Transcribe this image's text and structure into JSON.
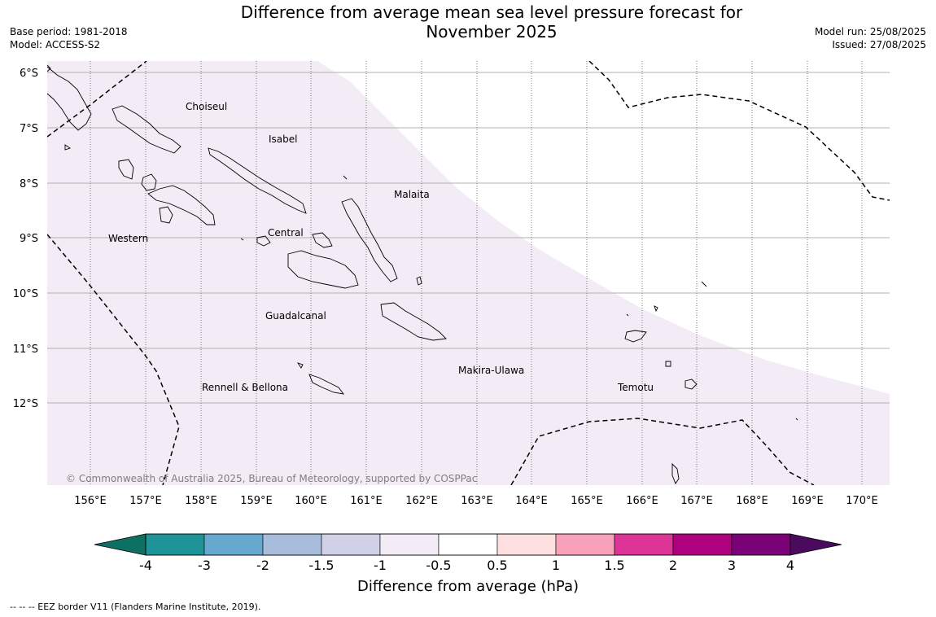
{
  "title_line1": "Difference from average mean sea level pressure forecast for",
  "title_line2": "November 2025",
  "meta_left": {
    "base_period": "Base period: 1981-2018",
    "model": "Model: ACCESS-S2"
  },
  "meta_right": {
    "model_run": "Model run: 25/08/2025",
    "issued": "Issued: 27/08/2025"
  },
  "map": {
    "lon_ticks": [
      "156°E",
      "157°E",
      "158°E",
      "159°E",
      "160°E",
      "161°E",
      "162°E",
      "163°E",
      "164°E",
      "165°E",
      "166°E",
      "167°E",
      "168°E",
      "169°E",
      "170°E"
    ],
    "lat_ticks": [
      "6°S",
      "7°S",
      "8°S",
      "9°S",
      "10°S",
      "11°S",
      "12°S"
    ],
    "copyright": "© Commonwealth of Australia 2025, Bureau of Meteorology, supported by COSPPac",
    "places": [
      {
        "name": "Choiseul"
      },
      {
        "name": "Isabel"
      },
      {
        "name": "Malaita"
      },
      {
        "name": "Western"
      },
      {
        "name": "Central"
      },
      {
        "name": "Guadalcanal"
      },
      {
        "name": "Makira-Ulawa"
      },
      {
        "name": "Rennell & Bellona"
      },
      {
        "name": "Temotu"
      }
    ],
    "fill_color": "#f3ebf5",
    "region_value_range": "-1 to -0.5 hPa"
  },
  "colorbar": {
    "label": "Difference from average (hPa)",
    "ticks": [
      "-4",
      "-3",
      "-2",
      "-1.5",
      "-1",
      "-0.5",
      "0.5",
      "1",
      "1.5",
      "2",
      "3",
      "4"
    ],
    "under_color": "#0d7062",
    "over_color": "#4a0a5e",
    "colors": [
      "#1f9498",
      "#66a8d0",
      "#a7bddb",
      "#d0d1e6",
      "#f3ebf5",
      "#ffffff",
      "#fddfdf",
      "#f9a0bb",
      "#dd3497",
      "#ae017e",
      "#7a0177"
    ]
  },
  "footnote": "--  --  -- EEZ border V11 (Flanders Marine Institute, 2019)."
}
